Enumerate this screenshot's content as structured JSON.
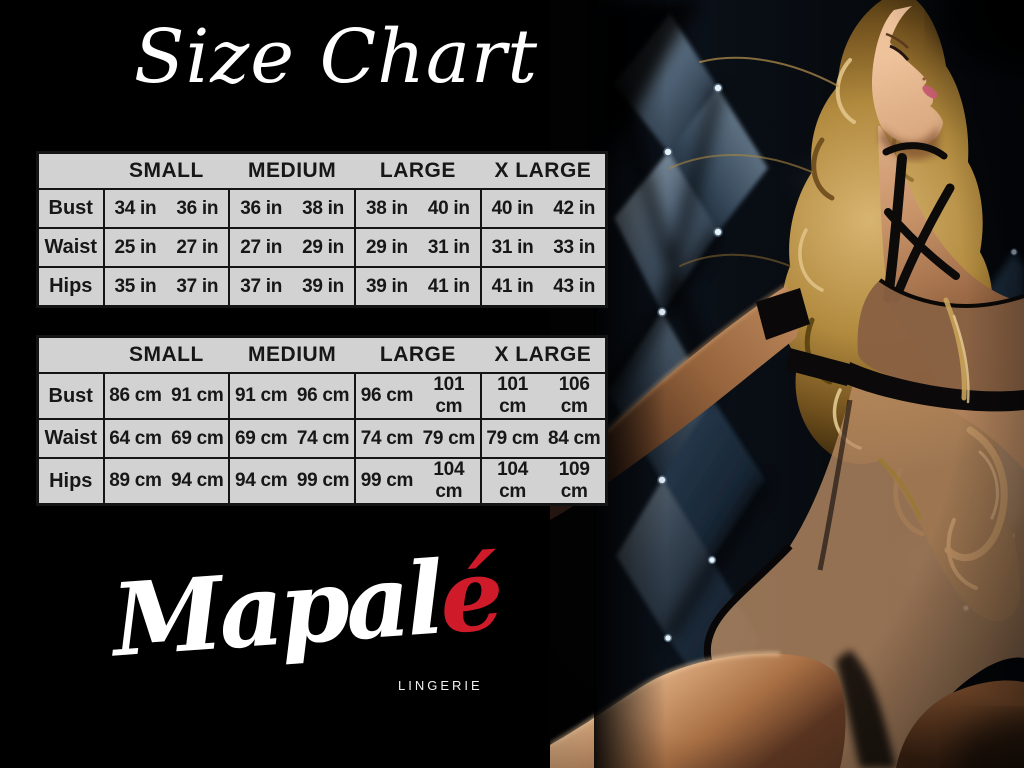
{
  "page": {
    "title_label": "Size Chart"
  },
  "brand": {
    "name": "Mapalé",
    "name_prefix": "Mapal",
    "name_accent": "é",
    "tagline": "LINGERIE"
  },
  "size_tables": [
    {
      "id": "inches",
      "unit": "in",
      "columns": [
        "SMALL",
        "MEDIUM",
        "LARGE",
        "X LARGE"
      ],
      "rows": [
        {
          "label": "Bust",
          "values": [
            [
              "34 in",
              "36 in"
            ],
            [
              "36 in",
              "38 in"
            ],
            [
              "38 in",
              "40 in"
            ],
            [
              "40 in",
              "42 in"
            ]
          ]
        },
        {
          "label": "Waist",
          "values": [
            [
              "25 in",
              "27 in"
            ],
            [
              "27 in",
              "29 in"
            ],
            [
              "29 in",
              "31 in"
            ],
            [
              "31 in",
              "33 in"
            ]
          ]
        },
        {
          "label": "Hips",
          "values": [
            [
              "35 in",
              "37 in"
            ],
            [
              "37 in",
              "39 in"
            ],
            [
              "39 in",
              "41 in"
            ],
            [
              "41 in",
              "43 in"
            ]
          ]
        }
      ]
    },
    {
      "id": "centimeters",
      "unit": "cm",
      "columns": [
        "SMALL",
        "MEDIUM",
        "LARGE",
        "X LARGE"
      ],
      "rows": [
        {
          "label": "Bust",
          "values": [
            [
              "86 cm",
              "91 cm"
            ],
            [
              "91 cm",
              "96 cm"
            ],
            [
              "96 cm",
              "101 cm"
            ],
            [
              "101 cm",
              "106 cm"
            ]
          ]
        },
        {
          "label": "Waist",
          "values": [
            [
              "64 cm",
              "69 cm"
            ],
            [
              "69 cm",
              "74 cm"
            ],
            [
              "74 cm",
              "79 cm"
            ],
            [
              "79 cm",
              "84 cm"
            ]
          ]
        },
        {
          "label": "Hips",
          "values": [
            [
              "89 cm",
              "94 cm"
            ],
            [
              "94 cm",
              "99 cm"
            ],
            [
              "99 cm",
              "104 cm"
            ],
            [
              "104 cm",
              "109 cm"
            ]
          ]
        }
      ]
    }
  ],
  "colors": {
    "accent_red": "#cf1b29",
    "table_cell_bg": "#d2d2d2",
    "table_border": "#141414",
    "table_text": "#171717",
    "title_text": "#ffffff",
    "background": "#000000"
  }
}
